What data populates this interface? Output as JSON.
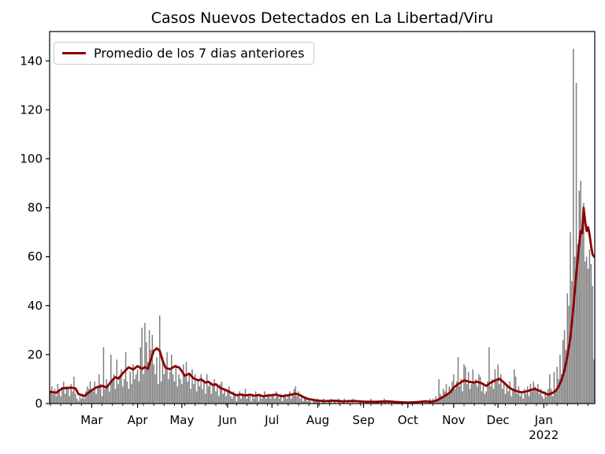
{
  "title": "Casos Nuevos Detectados en La Libertad/Viru",
  "legend": {
    "label": "Promedio de los 7 dias anteriores",
    "line_color": "#8B0000"
  },
  "colors": {
    "bar": "#7f7f7f",
    "line": "#8B0000",
    "axis": "#000000",
    "text": "#000000",
    "background": "#ffffff"
  },
  "chart_data": {
    "type": "bar",
    "title": "Casos Nuevos Detectados en La Libertad/Viru",
    "xlabel": "",
    "ylabel": "",
    "start_date": "2021-02-01",
    "end_date": "2022-02-04",
    "n_days": 369,
    "ylim": [
      0,
      152
    ],
    "yticks": [
      0,
      20,
      40,
      60,
      80,
      100,
      120,
      140
    ],
    "xticks": [
      {
        "label": "Mar",
        "day": 28
      },
      {
        "label": "Apr",
        "day": 59
      },
      {
        "label": "May",
        "day": 89
      },
      {
        "label": "Jun",
        "day": 120
      },
      {
        "label": "Jul",
        "day": 150
      },
      {
        "label": "Aug",
        "day": 181
      },
      {
        "label": "Sep",
        "day": 212
      },
      {
        "label": "Oct",
        "day": 242
      },
      {
        "label": "Nov",
        "day": 273
      },
      {
        "label": "Dec",
        "day": 303
      },
      {
        "label": "Jan",
        "day": 334,
        "sublabel": "2022"
      }
    ],
    "minor_tick_interval_days": 7,
    "grid": false,
    "legend_position": "upper-left",
    "bars": [
      5,
      7,
      4,
      6,
      3,
      8,
      5,
      3,
      6,
      9,
      4,
      7,
      6,
      3,
      8,
      5,
      11,
      4,
      2,
      1,
      3,
      2,
      4,
      2,
      5,
      7,
      6,
      9,
      6,
      5,
      9,
      4,
      7,
      12,
      8,
      3,
      23,
      6,
      10,
      7,
      5,
      20,
      9,
      12,
      6,
      18,
      8,
      11,
      14,
      7,
      10,
      21,
      9,
      6,
      13,
      8,
      16,
      10,
      12,
      14,
      9,
      23,
      31,
      12,
      33,
      25,
      17,
      30,
      22,
      28,
      16,
      12,
      19,
      8,
      36,
      9,
      19,
      12,
      14,
      21,
      10,
      13,
      20,
      12,
      9,
      16,
      7,
      12,
      10,
      8,
      16,
      12,
      17,
      9,
      12,
      6,
      14,
      8,
      12,
      5,
      10,
      7,
      12,
      6,
      9,
      4,
      12,
      7,
      9,
      4,
      8,
      10,
      5,
      7,
      3,
      8,
      9,
      4,
      6,
      3,
      5,
      7,
      3,
      2,
      5,
      4,
      1,
      3,
      5,
      2,
      4,
      3,
      6,
      2,
      4,
      3,
      1,
      4,
      2,
      5,
      3,
      1,
      4,
      2,
      3,
      5,
      2,
      3,
      4,
      2,
      3,
      4,
      2,
      5,
      3,
      2,
      4,
      1,
      3,
      4,
      2,
      3,
      5,
      2,
      4,
      6,
      7,
      3,
      5,
      2,
      3,
      1,
      2,
      3,
      1,
      2,
      1,
      0,
      2,
      1,
      1,
      2,
      1,
      0,
      1,
      2,
      1,
      0,
      1,
      1,
      2,
      0,
      1,
      1,
      0,
      2,
      1,
      0,
      1,
      2,
      0,
      1,
      1,
      0,
      1,
      2,
      0,
      1,
      0,
      1,
      1,
      0,
      1,
      0,
      1,
      1,
      0,
      2,
      0,
      1,
      0,
      1,
      1,
      0,
      1,
      0,
      2,
      1,
      0,
      1,
      0,
      1,
      0,
      1,
      1,
      0,
      1,
      0,
      1,
      1,
      0,
      1,
      0,
      1,
      0,
      0,
      1,
      0,
      1,
      0,
      0,
      1,
      1,
      0,
      1,
      0,
      1,
      2,
      1,
      2,
      1,
      3,
      2,
      10,
      4,
      3,
      6,
      5,
      8,
      4,
      7,
      6,
      9,
      12,
      6,
      9,
      19,
      7,
      10,
      5,
      16,
      15,
      8,
      13,
      6,
      8,
      14,
      9,
      10,
      7,
      12,
      11,
      5,
      8,
      4,
      5,
      9,
      23,
      7,
      10,
      6,
      14,
      9,
      16,
      8,
      12,
      6,
      9,
      4,
      7,
      5,
      9,
      3,
      6,
      14,
      11,
      4,
      7,
      3,
      5,
      2,
      6,
      4,
      7,
      3,
      8,
      5,
      9,
      7,
      6,
      8,
      4,
      6,
      3,
      2,
      5,
      3,
      6,
      12,
      6,
      3,
      13,
      6,
      15,
      10,
      20,
      12,
      26,
      30,
      22,
      45,
      40,
      70,
      50,
      145,
      60,
      131,
      65,
      87,
      91,
      70,
      82,
      58,
      60,
      55,
      63,
      57,
      48,
      18
    ],
    "series": [
      {
        "name": "Promedio de los 7 dias anteriores",
        "type": "line",
        "color": "#8B0000",
        "keypoints": [
          [
            0,
            4.8
          ],
          [
            4,
            4.4
          ],
          [
            8,
            6.2
          ],
          [
            14,
            6.5
          ],
          [
            17,
            6.2
          ],
          [
            19,
            3.9
          ],
          [
            23,
            3.1
          ],
          [
            27,
            5.0
          ],
          [
            31,
            6.6
          ],
          [
            35,
            7.2
          ],
          [
            38,
            6.6
          ],
          [
            42,
            9.6
          ],
          [
            44,
            10.8
          ],
          [
            46,
            10.2
          ],
          [
            50,
            13.0
          ],
          [
            53,
            14.8
          ],
          [
            56,
            13.9
          ],
          [
            59,
            15.3
          ],
          [
            62,
            14.2
          ],
          [
            64,
            14.9
          ],
          [
            66,
            14.2
          ],
          [
            68,
            18.0
          ],
          [
            70,
            21.5
          ],
          [
            72,
            22.6
          ],
          [
            74,
            21.6
          ],
          [
            76,
            17.5
          ],
          [
            78,
            14.6
          ],
          [
            81,
            14.0
          ],
          [
            84,
            15.2
          ],
          [
            87,
            14.8
          ],
          [
            89,
            13.2
          ],
          [
            91,
            11.4
          ],
          [
            94,
            12.2
          ],
          [
            97,
            10.3
          ],
          [
            100,
            9.5
          ],
          [
            102,
            9.9
          ],
          [
            105,
            8.6
          ],
          [
            107,
            8.9
          ],
          [
            110,
            7.6
          ],
          [
            112,
            7.9
          ],
          [
            115,
            6.4
          ],
          [
            118,
            5.7
          ],
          [
            120,
            5.2
          ],
          [
            123,
            4.2
          ],
          [
            126,
            3.4
          ],
          [
            129,
            3.7
          ],
          [
            132,
            3.3
          ],
          [
            135,
            3.6
          ],
          [
            138,
            3.2
          ],
          [
            141,
            3.5
          ],
          [
            144,
            3.0
          ],
          [
            147,
            3.3
          ],
          [
            150,
            3.4
          ],
          [
            153,
            3.7
          ],
          [
            156,
            3.0
          ],
          [
            159,
            3.2
          ],
          [
            162,
            3.5
          ],
          [
            166,
            4.1
          ],
          [
            169,
            3.4
          ],
          [
            172,
            2.4
          ],
          [
            175,
            1.8
          ],
          [
            181,
            1.2
          ],
          [
            186,
            1.0
          ],
          [
            192,
            1.2
          ],
          [
            198,
            0.9
          ],
          [
            205,
            1.1
          ],
          [
            212,
            0.8
          ],
          [
            220,
            0.7
          ],
          [
            228,
            0.9
          ],
          [
            235,
            0.6
          ],
          [
            242,
            0.4
          ],
          [
            248,
            0.6
          ],
          [
            254,
            0.9
          ],
          [
            258,
            0.7
          ],
          [
            262,
            1.4
          ],
          [
            265,
            2.4
          ],
          [
            268,
            3.5
          ],
          [
            271,
            4.8
          ],
          [
            273,
            6.5
          ],
          [
            276,
            7.9
          ],
          [
            280,
            9.5
          ],
          [
            283,
            9.0
          ],
          [
            286,
            8.6
          ],
          [
            289,
            8.9
          ],
          [
            292,
            8.3
          ],
          [
            295,
            7.2
          ],
          [
            298,
            8.5
          ],
          [
            301,
            9.4
          ],
          [
            304,
            10.1
          ],
          [
            307,
            8.6
          ],
          [
            310,
            6.8
          ],
          [
            313,
            5.7
          ],
          [
            316,
            5.0
          ],
          [
            319,
            4.6
          ],
          [
            322,
            4.9
          ],
          [
            325,
            5.5
          ],
          [
            328,
            6.0
          ],
          [
            331,
            5.2
          ],
          [
            334,
            4.4
          ],
          [
            337,
            3.6
          ],
          [
            340,
            4.4
          ],
          [
            342,
            5.2
          ],
          [
            344,
            6.9
          ],
          [
            346,
            9.6
          ],
          [
            348,
            13.6
          ],
          [
            350,
            19.5
          ],
          [
            352,
            27.0
          ],
          [
            354,
            39.0
          ],
          [
            356,
            53.0
          ],
          [
            358,
            65.5
          ],
          [
            359,
            70.5
          ],
          [
            360,
            69.5
          ],
          [
            361,
            80.0
          ],
          [
            362,
            74.5
          ],
          [
            363,
            70.5
          ],
          [
            364,
            72.0
          ],
          [
            365,
            69.0
          ],
          [
            366,
            64.5
          ],
          [
            367,
            61.0
          ],
          [
            368,
            60.0
          ]
        ]
      }
    ]
  }
}
